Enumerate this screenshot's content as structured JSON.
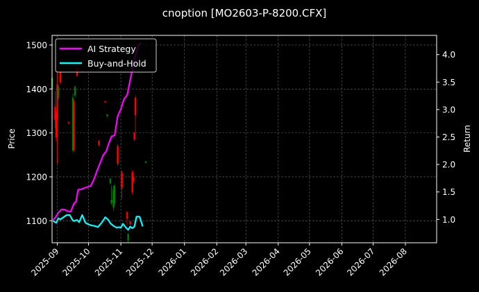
{
  "chart_data": {
    "type": "line",
    "title": "cnoption [MO2603-P-8200.CFX]",
    "ylabel": "Price",
    "y2label": "Return",
    "grid": true,
    "legend_placement": "top-left",
    "ylim": [
      1050,
      1522
    ],
    "y2lim": [
      0.575,
      4.35
    ],
    "xlim": [
      "2025-08-27",
      "2026-08-31"
    ],
    "yticks": [
      1100,
      1200,
      1300,
      1400,
      1500
    ],
    "y2ticks": [
      1.0,
      1.5,
      2.0,
      2.5,
      3.0,
      3.5,
      4.0
    ],
    "xticks": [
      "2025-09",
      "2025-10",
      "2025-11",
      "2025-12",
      "2026-01",
      "2026-02",
      "2026-03",
      "2026-04",
      "2026-05",
      "2026-06",
      "2026-07",
      "2026-08"
    ],
    "candles_price_axis": [
      {
        "date": "2025-08-27",
        "open": 1400,
        "close": 1425,
        "high": 1430,
        "low": 1395,
        "up": true
      },
      {
        "date": "2025-08-30",
        "open": 1360,
        "close": 1330,
        "high": 1395,
        "low": 1310,
        "up": false
      },
      {
        "date": "2025-08-31",
        "open": 1345,
        "close": 1290,
        "high": 1350,
        "low": 1280,
        "up": false
      },
      {
        "date": "2025-09-01",
        "open": 1410,
        "close": 1330,
        "high": 1440,
        "low": 1230,
        "up": false
      },
      {
        "date": "2025-09-02",
        "open": 1380,
        "close": 1405,
        "high": 1410,
        "low": 1375,
        "up": true
      },
      {
        "date": "2025-09-04",
        "open": 1440,
        "close": 1415,
        "high": 1445,
        "low": 1410,
        "up": false
      },
      {
        "date": "2025-09-12",
        "open": 1325,
        "close": 1322,
        "high": 1326,
        "low": 1320,
        "up": false
      },
      {
        "date": "2025-09-16",
        "open": 1260,
        "close": 1380,
        "high": 1390,
        "low": 1255,
        "up": true
      },
      {
        "date": "2025-09-17",
        "open": 1370,
        "close": 1262,
        "high": 1375,
        "low": 1258,
        "up": false
      },
      {
        "date": "2025-09-18",
        "open": 1385,
        "close": 1405,
        "high": 1408,
        "low": 1380,
        "up": true
      },
      {
        "date": "2025-09-20",
        "open": 1445,
        "close": 1430,
        "high": 1448,
        "low": 1428,
        "up": false
      },
      {
        "date": "2025-10-11",
        "open": 1282,
        "close": 1272,
        "high": 1283,
        "low": 1270,
        "up": false
      },
      {
        "date": "2025-10-17",
        "open": 1372,
        "close": 1370,
        "high": 1373,
        "low": 1369,
        "up": false
      },
      {
        "date": "2025-10-19",
        "open": 1342,
        "close": 1338,
        "high": 1343,
        "low": 1336,
        "up": true
      },
      {
        "date": "2025-10-22",
        "open": 1185,
        "close": 1196,
        "high": 1197,
        "low": 1183,
        "up": true
      },
      {
        "date": "2025-10-23",
        "open": 1148,
        "close": 1140,
        "high": 1180,
        "low": 1136,
        "up": true
      },
      {
        "date": "2025-10-25",
        "open": 1130,
        "close": 1170,
        "high": 1180,
        "low": 1122,
        "up": true
      },
      {
        "date": "2025-10-26",
        "open": 1140,
        "close": 1180,
        "high": 1185,
        "low": 1135,
        "up": true
      },
      {
        "date": "2025-10-29",
        "open": 1270,
        "close": 1230,
        "high": 1275,
        "low": 1225,
        "up": false
      },
      {
        "date": "2025-11-02",
        "open": 1210,
        "close": 1175,
        "high": 1215,
        "low": 1150,
        "up": false
      },
      {
        "date": "2025-11-07",
        "open": 1120,
        "close": 1105,
        "high": 1122,
        "low": 1090,
        "up": false
      },
      {
        "date": "2025-11-08",
        "open": 1070,
        "close": 1055,
        "high": 1072,
        "low": 1050,
        "up": true
      },
      {
        "date": "2025-11-10",
        "open": 1098,
        "close": 1092,
        "high": 1100,
        "low": 1090,
        "up": false
      },
      {
        "date": "2025-11-12",
        "open": 1210,
        "close": 1165,
        "high": 1215,
        "low": 1160,
        "up": false
      },
      {
        "date": "2025-11-13",
        "open": 1200,
        "close": 1190,
        "high": 1212,
        "low": 1186,
        "up": false
      },
      {
        "date": "2025-11-14",
        "open": 1300,
        "close": 1285,
        "high": 1303,
        "low": 1282,
        "up": false
      },
      {
        "date": "2025-11-15",
        "open": 1380,
        "close": 1340,
        "high": 1385,
        "low": 1300,
        "up": false
      },
      {
        "date": "2025-11-25",
        "open": 1232,
        "close": 1235,
        "high": 1236,
        "low": 1231,
        "up": true
      }
    ],
    "series": [
      {
        "name": "AI Strategy",
        "color": "#ff00ff",
        "axis": "return",
        "x": [
          "2025-08-28",
          "2025-08-31",
          "2025-09-02",
          "2025-09-05",
          "2025-09-08",
          "2025-09-11",
          "2025-09-14",
          "2025-09-17",
          "2025-09-19",
          "2025-09-21",
          "2025-09-24",
          "2025-09-27",
          "2025-09-30",
          "2025-10-03",
          "2025-10-06",
          "2025-10-09",
          "2025-10-12",
          "2025-10-15",
          "2025-10-18",
          "2025-10-20",
          "2025-10-23",
          "2025-10-26",
          "2025-10-29",
          "2025-11-01",
          "2025-11-04",
          "2025-11-07",
          "2025-11-10",
          "2025-11-13",
          "2025-11-16",
          "2025-11-18",
          "2025-11-21"
        ],
        "values": [
          0.98,
          1.06,
          1.12,
          1.18,
          1.18,
          1.15,
          1.14,
          1.29,
          1.32,
          1.54,
          1.55,
          1.57,
          1.59,
          1.61,
          1.72,
          1.88,
          2.02,
          2.17,
          2.24,
          2.36,
          2.51,
          2.53,
          2.88,
          3.01,
          3.19,
          3.26,
          3.54,
          3.82,
          4.08,
          4.18,
          4.21
        ]
      },
      {
        "name": "Buy-and-Hold",
        "color": "#00ffff",
        "axis": "return",
        "x": [
          "2025-08-28",
          "2025-08-31",
          "2025-09-02",
          "2025-09-04",
          "2025-09-07",
          "2025-09-10",
          "2025-09-13",
          "2025-09-16",
          "2025-09-17",
          "2025-09-20",
          "2025-09-22",
          "2025-09-25",
          "2025-09-28",
          "2025-10-01",
          "2025-10-04",
          "2025-10-07",
          "2025-10-10",
          "2025-10-14",
          "2025-10-17",
          "2025-10-20",
          "2025-10-22",
          "2025-10-25",
          "2025-10-28",
          "2025-10-30",
          "2025-11-01",
          "2025-11-03",
          "2025-11-06",
          "2025-11-08",
          "2025-11-10",
          "2025-11-12",
          "2025-11-14",
          "2025-11-16",
          "2025-11-19",
          "2025-11-22"
        ],
        "values": [
          0.97,
          0.94,
          1.02,
          1.0,
          1.04,
          1.08,
          1.08,
          0.98,
          0.97,
          0.99,
          0.95,
          1.08,
          0.94,
          0.91,
          0.89,
          0.88,
          0.86,
          0.95,
          1.04,
          0.99,
          0.93,
          0.88,
          0.85,
          0.86,
          0.85,
          0.92,
          0.85,
          0.81,
          0.87,
          0.84,
          0.87,
          1.05,
          1.05,
          0.87
        ]
      }
    ]
  }
}
